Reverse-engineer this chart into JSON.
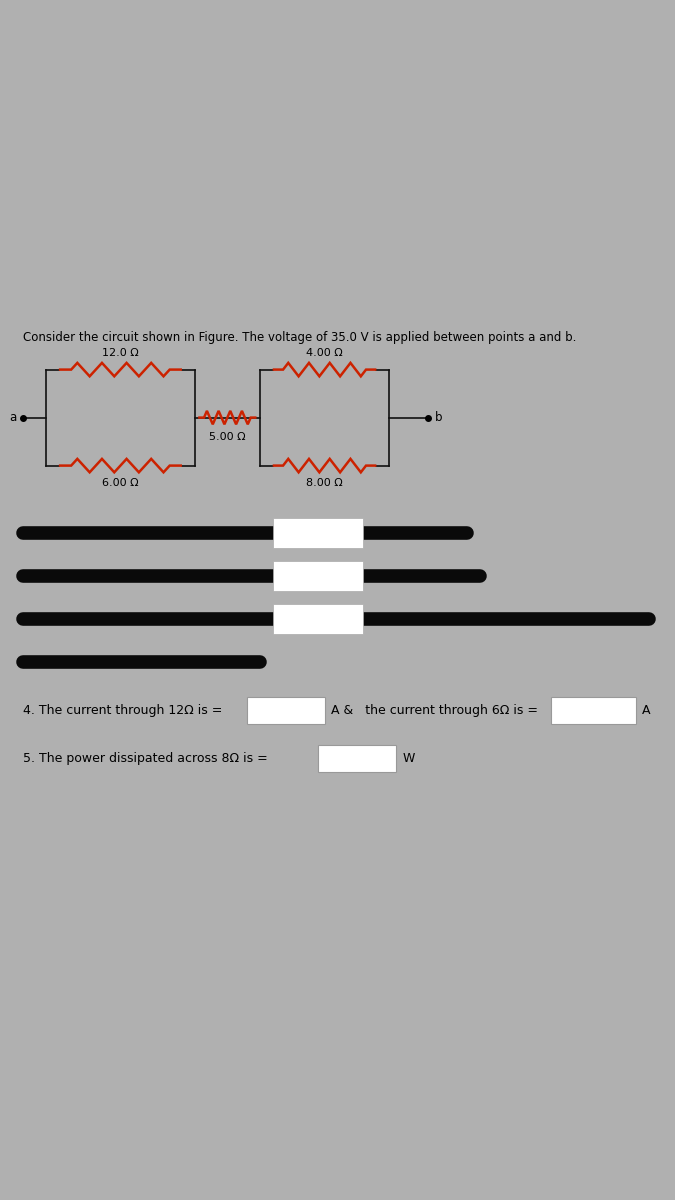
{
  "title_text": "Consider the circuit shown in Figure. The voltage of 35.0 V is applied between points a and b.",
  "background_page": "#b0b0b0",
  "background_paper": "#e8e8e8",
  "circuit_bg": "#dcdcdc",
  "resistor_color": "#cc2200",
  "wire_color": "#111111",
  "resistors": {
    "R12": "12.0 Ω",
    "R6": "6.00 Ω",
    "R5": "5.00 Ω",
    "R4": "4.00 Ω",
    "R8": "8.00 Ω"
  },
  "q4_text": "4. The current through 12Ω is =",
  "q4_mid": "A &   the current through 6Ω is =",
  "q4_end": "A",
  "q5_text": "5. The power dissipated across 8Ω is =",
  "q5_end": "W",
  "font_size_title": 8.5,
  "font_size_label": 8,
  "font_size_q": 9
}
